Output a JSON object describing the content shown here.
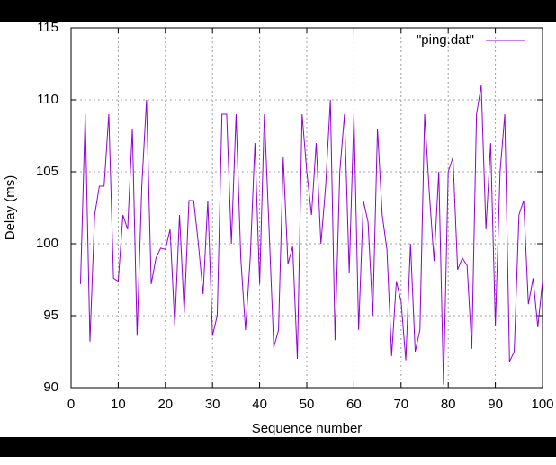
{
  "chart_data": {
    "type": "line",
    "xlabel": "Sequence number",
    "ylabel": "Delay (ms)",
    "x": [
      2,
      3,
      4,
      5,
      6,
      7,
      8,
      9,
      10,
      11,
      12,
      13,
      14,
      15,
      16,
      17,
      18,
      19,
      20,
      21,
      22,
      23,
      24,
      25,
      26,
      27,
      28,
      29,
      30,
      31,
      32,
      33,
      34,
      35,
      36,
      37,
      38,
      39,
      40,
      41,
      42,
      43,
      44,
      45,
      46,
      47,
      48,
      49,
      50,
      51,
      52,
      53,
      54,
      55,
      56,
      57,
      58,
      59,
      60,
      61,
      62,
      63,
      64,
      65,
      66,
      67,
      68,
      69,
      70,
      71,
      72,
      73,
      74,
      75,
      76,
      77,
      78,
      79,
      80,
      81,
      82,
      83,
      84,
      85,
      86,
      87,
      88,
      89,
      90,
      91,
      92,
      93,
      94,
      95,
      96,
      97,
      98,
      99,
      100
    ],
    "series": [
      {
        "name": "\"ping.dat\"",
        "color": "#9400d3",
        "values": [
          97.2,
          109,
          93.2,
          102,
          104,
          104,
          109,
          97.6,
          97.4,
          102,
          101,
          108,
          93.6,
          104,
          110,
          97.2,
          99,
          99.7,
          99.6,
          101,
          94.3,
          102,
          95.2,
          103,
          103,
          100,
          96.5,
          103,
          93.6,
          95,
          109,
          109,
          100,
          109,
          99,
          94,
          99,
          107,
          97.2,
          109,
          101,
          92.8,
          94,
          106,
          98.6,
          99.8,
          92,
          109,
          105,
          102,
          107,
          100,
          104,
          110,
          93.3,
          105,
          109,
          98,
          109,
          94,
          103,
          101.5,
          95,
          108,
          102,
          99.6,
          92.2,
          97.4,
          96,
          91.9,
          100,
          92.5,
          94,
          109,
          103.5,
          98.8,
          105,
          90.2,
          105,
          106,
          98.2,
          99,
          98.5,
          92.7,
          109,
          111,
          101,
          107,
          94.3,
          105,
          109,
          91.8,
          92.5,
          102,
          103,
          95.8,
          97.6,
          94.2,
          97.4
        ]
      }
    ],
    "xlim": [
      0,
      100
    ],
    "xticks": [
      0,
      10,
      20,
      30,
      40,
      50,
      60,
      70,
      80,
      90,
      100
    ],
    "ylim": [
      90,
      115
    ],
    "yticks": [
      90,
      95,
      100,
      105,
      110,
      115
    ],
    "grid": true,
    "legend": "top right"
  }
}
